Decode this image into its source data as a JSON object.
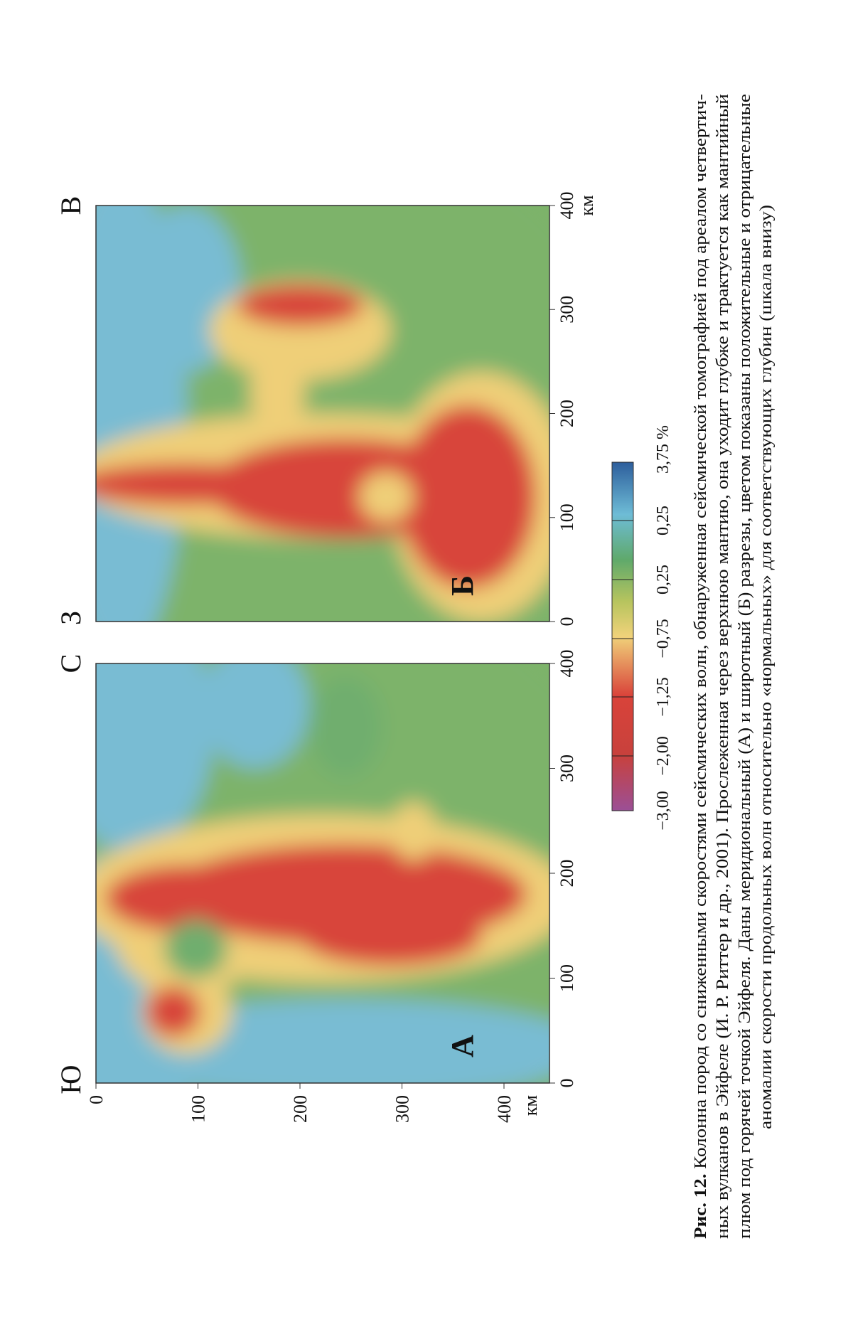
{
  "panels": [
    {
      "label": "А",
      "left_label": "Ю",
      "right_label": "С"
    },
    {
      "label": "Б",
      "left_label": "З",
      "right_label": "В"
    }
  ],
  "distance_ticks": [
    "0",
    "100",
    "200",
    "300",
    "400"
  ],
  "distance_unit": "км",
  "depth_ticks": [
    "0",
    "100",
    "200",
    "300",
    "400"
  ],
  "depth_unit": "км",
  "colorbar": {
    "labels": [
      "−3,00",
      "−2,00",
      "−1,25",
      "−0,75",
      "0,25",
      "0,25",
      "3,75 %"
    ]
  },
  "caption": {
    "label": "Рис. 12.",
    "lines": [
      "Колонна пород со сниженными скоростями сейсмических волн, обнаруженная сейсмической томографией под ареалом четвертич-",
      "ных вулканов в Эйфеле (И. Р. Риттер и др., 2001). Прослеженная через верхнюю мантию, она уходит глубже и трактуется как мантийный",
      "плюм под горячей точкой Эйфеля. Даны меридиональный (А) и широтный (Б) разрезы, цветом показаны положительные и отрицательные",
      "аномалии скорости продольных волн относительно «нормальных» для соответствующих глубин (шкала внизу)"
    ]
  }
}
